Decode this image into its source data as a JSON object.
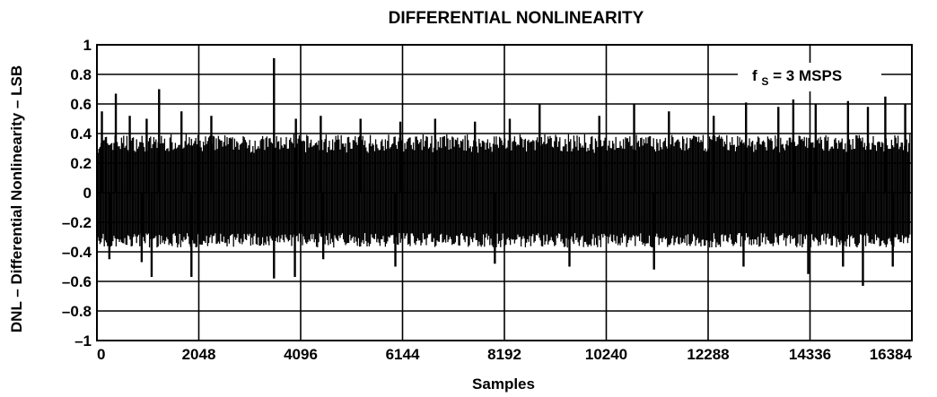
{
  "chart_data": {
    "type": "bar",
    "title": "DIFFERENTIAL NONLINEARITY",
    "xlabel": "Samples",
    "ylabel": "DNL – Differential Nonlinearity – LSB",
    "xlim": [
      0,
      16384
    ],
    "ylim": [
      -1,
      1
    ],
    "x_ticks": [
      0,
      2048,
      4096,
      6144,
      8192,
      10240,
      12288,
      14336,
      16384
    ],
    "x_tick_labels": [
      "0",
      "2048",
      "4096",
      "6144",
      "8192",
      "10240",
      "12288",
      "14336",
      "16384"
    ],
    "y_ticks": [
      -1,
      -0.8,
      -0.6,
      -0.4,
      -0.2,
      0,
      0.2,
      0.4,
      0.6,
      0.8,
      1
    ],
    "y_tick_labels": [
      "–1",
      "–0.8",
      "–0.6",
      "–0.4",
      "–0.2",
      "0",
      "0.2",
      "0.4",
      "0.6",
      "0.8",
      "1"
    ],
    "grid": true,
    "annotation": {
      "prefix": "f",
      "subscript": "S",
      "suffix": " = 3 MSPS"
    },
    "band": {
      "max": 0.4,
      "min": -0.35
    },
    "peaks": [
      {
        "x": 100,
        "y": 0.55
      },
      {
        "x": 380,
        "y": 0.67
      },
      {
        "x": 660,
        "y": 0.52
      },
      {
        "x": 1000,
        "y": 0.5
      },
      {
        "x": 1250,
        "y": 0.7
      },
      {
        "x": 1700,
        "y": 0.55
      },
      {
        "x": 2300,
        "y": 0.52
      },
      {
        "x": 3560,
        "y": 0.91
      },
      {
        "x": 4000,
        "y": 0.5
      },
      {
        "x": 4500,
        "y": 0.52
      },
      {
        "x": 5300,
        "y": 0.5
      },
      {
        "x": 6100,
        "y": 0.48
      },
      {
        "x": 6800,
        "y": 0.5
      },
      {
        "x": 7600,
        "y": 0.48
      },
      {
        "x": 8300,
        "y": 0.5
      },
      {
        "x": 8900,
        "y": 0.6
      },
      {
        "x": 10100,
        "y": 0.52
      },
      {
        "x": 10800,
        "y": 0.6
      },
      {
        "x": 11500,
        "y": 0.55
      },
      {
        "x": 12400,
        "y": 0.52
      },
      {
        "x": 13050,
        "y": 0.61
      },
      {
        "x": 13700,
        "y": 0.58
      },
      {
        "x": 14000,
        "y": 0.63
      },
      {
        "x": 14450,
        "y": 0.6
      },
      {
        "x": 15100,
        "y": 0.62
      },
      {
        "x": 15500,
        "y": 0.58
      },
      {
        "x": 15850,
        "y": 0.65
      },
      {
        "x": 16250,
        "y": 0.6
      }
    ],
    "troughs": [
      {
        "x": 250,
        "y": -0.45
      },
      {
        "x": 900,
        "y": -0.47
      },
      {
        "x": 1100,
        "y": -0.57
      },
      {
        "x": 1900,
        "y": -0.57
      },
      {
        "x": 3560,
        "y": -0.58
      },
      {
        "x": 3980,
        "y": -0.57
      },
      {
        "x": 4550,
        "y": -0.45
      },
      {
        "x": 6000,
        "y": -0.5
      },
      {
        "x": 8000,
        "y": -0.48
      },
      {
        "x": 9500,
        "y": -0.5
      },
      {
        "x": 11200,
        "y": -0.52
      },
      {
        "x": 13000,
        "y": -0.5
      },
      {
        "x": 14300,
        "y": -0.55
      },
      {
        "x": 15000,
        "y": -0.5
      },
      {
        "x": 15400,
        "y": -0.63
      },
      {
        "x": 16000,
        "y": -0.5
      }
    ]
  }
}
